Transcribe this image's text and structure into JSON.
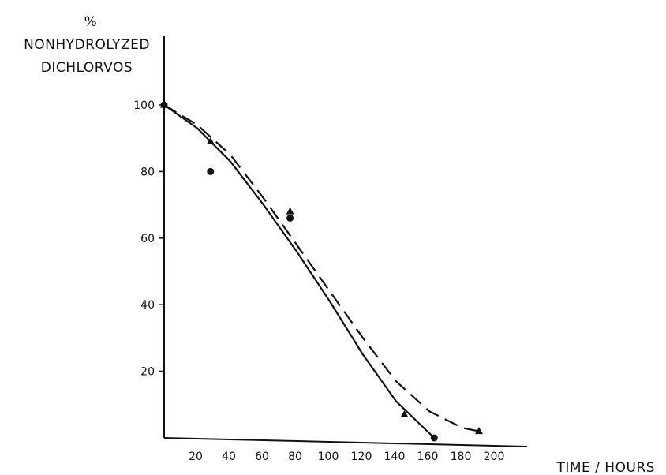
{
  "chart_data": {
    "type": "scatter",
    "title": "",
    "ylabel_lines": [
      "%",
      "NONHYDROLYZED",
      "DICHLORVOS"
    ],
    "xlabel": "TIME / HOURS",
    "xlim": [
      0,
      210
    ],
    "ylim": [
      0,
      100
    ],
    "x_ticks": [
      20,
      40,
      60,
      80,
      100,
      120,
      140,
      160,
      180,
      200
    ],
    "y_ticks": [
      20,
      40,
      60,
      80,
      100
    ],
    "grid": false,
    "series": [
      {
        "marker": "circle",
        "points": [
          [
            0,
            100
          ],
          [
            28,
            80
          ],
          [
            76,
            66
          ],
          [
            163,
            0
          ]
        ],
        "fit_line": "solid",
        "fit_curve": [
          [
            0,
            100
          ],
          [
            20,
            93
          ],
          [
            40,
            83
          ],
          [
            60,
            70
          ],
          [
            80,
            56
          ],
          [
            100,
            41
          ],
          [
            120,
            25
          ],
          [
            140,
            11
          ],
          [
            163,
            0
          ]
        ]
      },
      {
        "marker": "triangle",
        "points": [
          [
            0,
            100
          ],
          [
            28,
            89
          ],
          [
            76,
            68
          ],
          [
            145,
            7
          ],
          [
            190,
            2
          ]
        ],
        "fit_line": "dashed",
        "fit_curve": [
          [
            0,
            100
          ],
          [
            20,
            94
          ],
          [
            40,
            85
          ],
          [
            60,
            72
          ],
          [
            80,
            58
          ],
          [
            100,
            44
          ],
          [
            120,
            30
          ],
          [
            140,
            17
          ],
          [
            160,
            8
          ],
          [
            180,
            3
          ],
          [
            190,
            2
          ]
        ]
      }
    ]
  }
}
